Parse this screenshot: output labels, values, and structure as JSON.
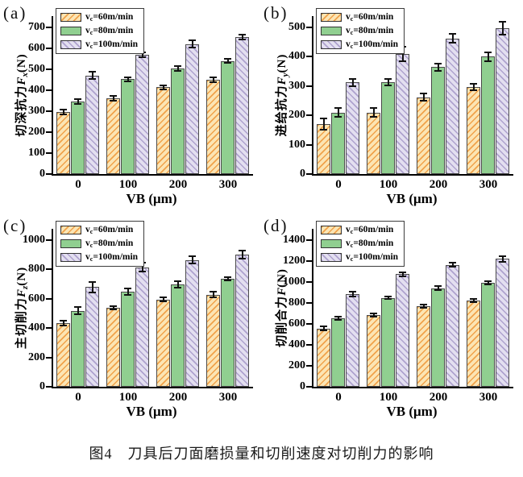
{
  "figure": {
    "caption": "图4　刀具后刀面磨损量和切削速度对切削力的影响",
    "background": "#ffffff"
  },
  "legend": {
    "items": [
      {
        "sym": "v",
        "sub": "c",
        "rest": "=60m/min"
      },
      {
        "sym": "v",
        "sub": "c",
        "rest": "=80m/min"
      },
      {
        "sym": "v",
        "sub": "c",
        "rest": "=100m/min"
      }
    ]
  },
  "series_styles": [
    {
      "name": "vc=60m/min",
      "fill": "#FCE5B4",
      "hatch": "#F0A24A",
      "hatch_dir": "/"
    },
    {
      "name": "vc=80m/min",
      "fill": "#90CF90",
      "hatch": null,
      "hatch_dir": null
    },
    {
      "name": "vc=100m/min",
      "fill": "#E3DFF0",
      "hatch": "#AEA2CE",
      "hatch_dir": "\\"
    }
  ],
  "axis": {
    "spine_color": "#000000",
    "error_bar_color": "#111111"
  },
  "chart_data": [
    {
      "type": "bar",
      "panel": "(a)",
      "ylabel": {
        "cn": "切深抗力",
        "sym": "F",
        "sub": "x",
        "unit": "(N)"
      },
      "xlabel": "VB (μm)",
      "categories": [
        "0",
        "100",
        "200",
        "300"
      ],
      "ylim": [
        0,
        700
      ],
      "ytick_step": 100,
      "grid": false,
      "legend_position": "upper-left",
      "series": [
        {
          "name": "vc=60m/min",
          "values": [
            295,
            362,
            415,
            450
          ],
          "errors": [
            12,
            13,
            10,
            10
          ]
        },
        {
          "name": "vc=80m/min",
          "values": [
            345,
            452,
            505,
            540
          ],
          "errors": [
            12,
            10,
            12,
            10
          ]
        },
        {
          "name": "vc=100m/min",
          "values": [
            470,
            570,
            620,
            655
          ],
          "errors": [
            18,
            12,
            18,
            12
          ]
        }
      ]
    },
    {
      "type": "bar",
      "panel": "(b)",
      "ylabel": {
        "cn": "进给抗力",
        "sym": "F",
        "sub": "y",
        "unit": "(N)"
      },
      "xlabel": "VB (μm)",
      "categories": [
        "0",
        "100",
        "200",
        "300"
      ],
      "ylim": [
        0,
        500
      ],
      "ytick_step": 100,
      "grid": false,
      "legend_position": "upper-left",
      "series": [
        {
          "name": "vc=60m/min",
          "values": [
            170,
            210,
            262,
            297
          ],
          "errors": [
            20,
            15,
            12,
            12
          ]
        },
        {
          "name": "vc=80m/min",
          "values": [
            210,
            313,
            365,
            400
          ],
          "errors": [
            15,
            12,
            12,
            15
          ]
        },
        {
          "name": "vc=100m/min",
          "values": [
            312,
            410,
            462,
            497
          ],
          "errors": [
            12,
            25,
            15,
            22
          ]
        }
      ]
    },
    {
      "type": "bar",
      "panel": "(c)",
      "ylabel": {
        "cn": "主切削力",
        "sym": "F",
        "sub": "z",
        "unit": "(N)"
      },
      "xlabel": "VB (μm)",
      "categories": [
        "0",
        "100",
        "200",
        "300"
      ],
      "ylim": [
        0,
        1000
      ],
      "ytick_step": 200,
      "grid": false,
      "legend_position": "upper-left",
      "series": [
        {
          "name": "vc=60m/min",
          "values": [
            435,
            540,
            595,
            628
          ],
          "errors": [
            15,
            12,
            15,
            18
          ]
        },
        {
          "name": "vc=80m/min",
          "values": [
            518,
            648,
            700,
            738
          ],
          "errors": [
            25,
            20,
            22,
            12
          ]
        },
        {
          "name": "vc=100m/min",
          "values": [
            680,
            815,
            865,
            900
          ],
          "errors": [
            35,
            30,
            25,
            28
          ]
        }
      ]
    },
    {
      "type": "bar",
      "panel": "(d)",
      "ylabel": {
        "cn": "切削合力",
        "sym": "F",
        "sub": "",
        "unit": "(N)"
      },
      "xlabel": "VB (μm)",
      "categories": [
        "0",
        "100",
        "200",
        "300"
      ],
      "ylim": [
        0,
        1400
      ],
      "ytick_step": 200,
      "grid": false,
      "legend_position": "upper-left",
      "series": [
        {
          "name": "vc=60m/min",
          "values": [
            555,
            685,
            770,
            825
          ],
          "errors": [
            20,
            12,
            15,
            15
          ]
        },
        {
          "name": "vc=80m/min",
          "values": [
            655,
            850,
            940,
            995
          ],
          "errors": [
            18,
            15,
            20,
            15
          ]
        },
        {
          "name": "vc=100m/min",
          "values": [
            885,
            1075,
            1165,
            1220
          ],
          "errors": [
            22,
            20,
            18,
            25
          ]
        }
      ]
    }
  ]
}
